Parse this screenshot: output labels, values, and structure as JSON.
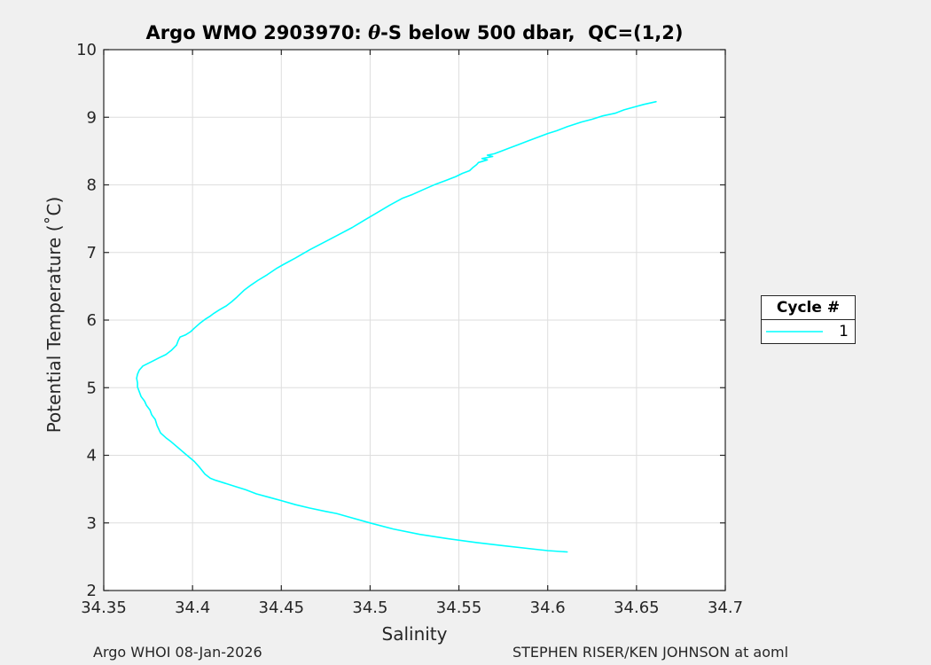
{
  "figure": {
    "background": "#f0f0f0",
    "plot_background": "#ffffff",
    "grid_color": "#dedede",
    "axis_color": "#262626",
    "line_color": "#00ffff"
  },
  "title": {
    "prefix": "Argo WMO 2903970: ",
    "theta": "θ",
    "suffix": "-S below 500 dbar,  QC=(1,2)"
  },
  "axes": {
    "xlabel": "Salinity",
    "ylabel": "Potential Temperature (˚C)"
  },
  "legend": {
    "title": "Cycle #",
    "entries": [
      {
        "label": "1",
        "color": "#00ffff"
      }
    ]
  },
  "footer": {
    "left": "Argo WHOI 08-Jan-2026",
    "right": "STEPHEN RISER/KEN JOHNSON at aoml"
  },
  "chart_data": {
    "type": "line",
    "title": "Argo WMO 2903970: θ-S below 500 dbar,  QC=(1,2)",
    "xlabel": "Salinity",
    "ylabel": "Potential Temperature (°C)",
    "xlim": [
      34.35,
      34.7
    ],
    "ylim": [
      2,
      10
    ],
    "x_ticks": [
      34.35,
      34.4,
      34.45,
      34.5,
      34.55,
      34.6,
      34.65,
      34.7
    ],
    "x_tick_labels": [
      "34.35",
      "34.4",
      "34.45",
      "34.5",
      "34.55",
      "34.6",
      "34.65",
      "34.7"
    ],
    "y_ticks": [
      2,
      3,
      4,
      5,
      6,
      7,
      8,
      9,
      10
    ],
    "y_tick_labels": [
      "2",
      "3",
      "4",
      "5",
      "6",
      "7",
      "8",
      "9",
      "10"
    ],
    "grid": true,
    "legend_position": "right-outside",
    "series": [
      {
        "name": "1",
        "color": "#00ffff",
        "points": [
          [
            34.661,
            9.23
          ],
          [
            34.654,
            9.19
          ],
          [
            34.65,
            9.16
          ],
          [
            34.643,
            9.11
          ],
          [
            34.638,
            9.06
          ],
          [
            34.631,
            9.02
          ],
          [
            34.625,
            8.97
          ],
          [
            34.619,
            8.93
          ],
          [
            34.611,
            8.86
          ],
          [
            34.605,
            8.8
          ],
          [
            34.6,
            8.76
          ],
          [
            34.595,
            8.71
          ],
          [
            34.589,
            8.65
          ],
          [
            34.583,
            8.59
          ],
          [
            34.578,
            8.54
          ],
          [
            34.574,
            8.5
          ],
          [
            34.57,
            8.46
          ],
          [
            34.566,
            8.44
          ],
          [
            34.569,
            8.42
          ],
          [
            34.563,
            8.39
          ],
          [
            34.566,
            8.37
          ],
          [
            34.561,
            8.33
          ],
          [
            34.56,
            8.3
          ],
          [
            34.558,
            8.26
          ],
          [
            34.556,
            8.21
          ],
          [
            34.552,
            8.17
          ],
          [
            34.548,
            8.12
          ],
          [
            34.543,
            8.07
          ],
          [
            34.537,
            8.01
          ],
          [
            34.53,
            7.93
          ],
          [
            34.524,
            7.86
          ],
          [
            34.518,
            7.8
          ],
          [
            34.511,
            7.7
          ],
          [
            34.504,
            7.59
          ],
          [
            34.497,
            7.48
          ],
          [
            34.49,
            7.37
          ],
          [
            34.482,
            7.26
          ],
          [
            34.474,
            7.15
          ],
          [
            34.466,
            7.04
          ],
          [
            34.458,
            6.92
          ],
          [
            34.451,
            6.82
          ],
          [
            34.447,
            6.76
          ],
          [
            34.442,
            6.67
          ],
          [
            34.437,
            6.59
          ],
          [
            34.433,
            6.52
          ],
          [
            34.429,
            6.44
          ],
          [
            34.425,
            6.34
          ],
          [
            34.422,
            6.27
          ],
          [
            34.419,
            6.21
          ],
          [
            34.415,
            6.15
          ],
          [
            34.412,
            6.1
          ],
          [
            34.41,
            6.06
          ],
          [
            34.407,
            6.01
          ],
          [
            34.404,
            5.95
          ],
          [
            34.401,
            5.88
          ],
          [
            34.399,
            5.83
          ],
          [
            34.396,
            5.78
          ],
          [
            34.393,
            5.75
          ],
          [
            34.392,
            5.7
          ],
          [
            34.391,
            5.63
          ],
          [
            34.388,
            5.55
          ],
          [
            34.385,
            5.49
          ],
          [
            34.381,
            5.44
          ],
          [
            34.378,
            5.4
          ],
          [
            34.375,
            5.36
          ],
          [
            34.372,
            5.32
          ],
          [
            34.371,
            5.29
          ],
          [
            34.37,
            5.26
          ],
          [
            34.369,
            5.2
          ],
          [
            34.3685,
            5.14
          ],
          [
            34.369,
            5.07
          ],
          [
            34.369,
            5.01
          ],
          [
            34.37,
            4.94
          ],
          [
            34.371,
            4.87
          ],
          [
            34.373,
            4.8
          ],
          [
            34.374,
            4.74
          ],
          [
            34.376,
            4.67
          ],
          [
            34.377,
            4.6
          ],
          [
            34.379,
            4.53
          ],
          [
            34.38,
            4.44
          ],
          [
            34.382,
            4.33
          ],
          [
            34.385,
            4.26
          ],
          [
            34.388,
            4.2
          ],
          [
            34.392,
            4.11
          ],
          [
            34.396,
            4.02
          ],
          [
            34.401,
            3.91
          ],
          [
            34.404,
            3.82
          ],
          [
            34.407,
            3.72
          ],
          [
            34.41,
            3.66
          ],
          [
            34.413,
            3.63
          ],
          [
            34.418,
            3.59
          ],
          [
            34.424,
            3.54
          ],
          [
            34.43,
            3.49
          ],
          [
            34.436,
            3.43
          ],
          [
            34.443,
            3.38
          ],
          [
            34.45,
            3.33
          ],
          [
            34.458,
            3.27
          ],
          [
            34.466,
            3.22
          ],
          [
            34.475,
            3.17
          ],
          [
            34.481,
            3.14
          ],
          [
            34.489,
            3.08
          ],
          [
            34.5,
            3.0
          ],
          [
            34.513,
            2.91
          ],
          [
            34.528,
            2.83
          ],
          [
            34.543,
            2.77
          ],
          [
            34.56,
            2.71
          ],
          [
            34.576,
            2.66
          ],
          [
            34.593,
            2.61
          ],
          [
            34.6,
            2.59
          ],
          [
            34.611,
            2.57
          ]
        ]
      }
    ]
  }
}
